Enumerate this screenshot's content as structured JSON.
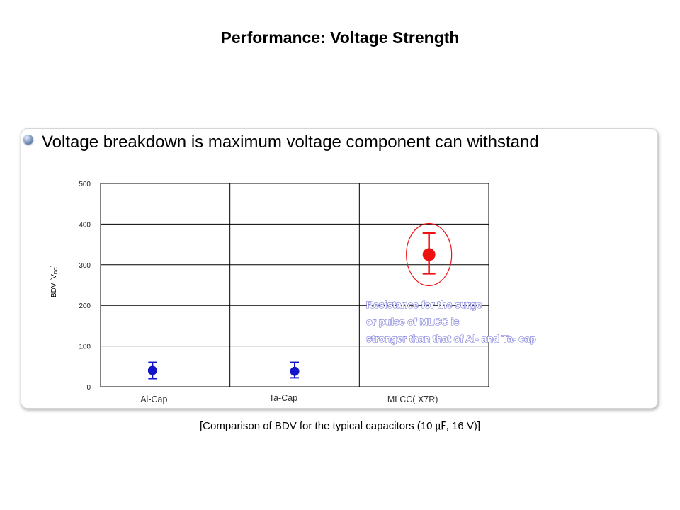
{
  "slide": {
    "title": "Performance: Voltage Strength",
    "bullet": "Voltage breakdown is maximum voltage component can withstand",
    "caption": "[Comparison of BDV for the typical capacitors (10 ㎌, 16 V)]"
  },
  "chart_data": {
    "type": "scatter",
    "title": "",
    "ylabel": "BDV [V",
    "ylabel_sub": "DC",
    "ylabel_close": "]",
    "ylim": [
      0,
      500
    ],
    "yticks": [
      "0",
      "100",
      "200",
      "300",
      "400",
      "500"
    ],
    "grid": true,
    "categories": [
      "Al-Cap",
      "Ta-Cap",
      "MLCC( X7R)"
    ],
    "series": [
      {
        "category": "Al-Cap",
        "value": 40,
        "low": 20,
        "high": 60,
        "color": "#1414c8"
      },
      {
        "category": "Ta-Cap",
        "value": 38,
        "low": 22,
        "high": 60,
        "color": "#1414c8"
      },
      {
        "category": "MLCC( X7R)",
        "value": 325,
        "low": 278,
        "high": 378,
        "color": "#ee1111",
        "highlight_ellipse": true
      }
    ],
    "annotation": [
      "Resistance  for the surge",
      "or pulse  of MLCC  is",
      "stronger  than that of Al- and Ta-  cap"
    ]
  }
}
